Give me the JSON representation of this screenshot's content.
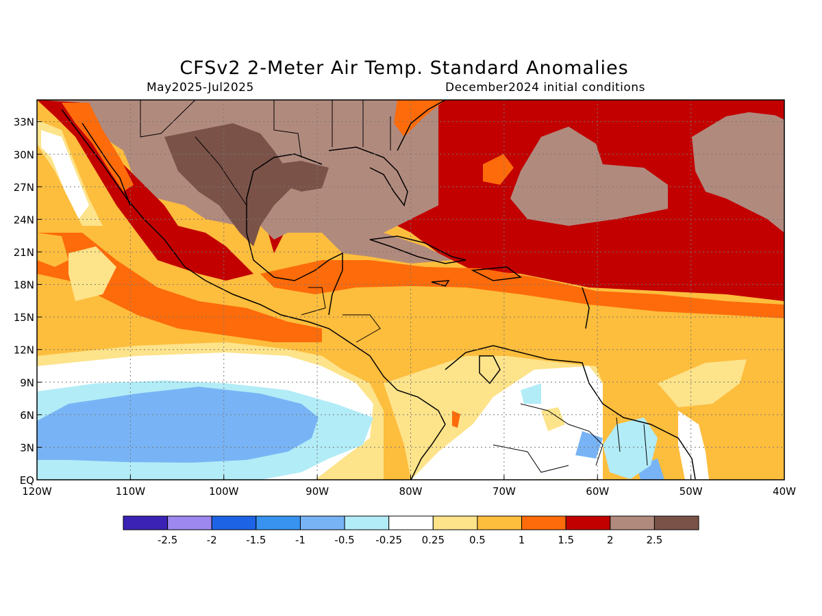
{
  "title": "CFSv2 2-Meter Air Temp. Standard Anomalies",
  "period": "May2025-Jul2025",
  "initial_conditions": "December2024 initial conditions",
  "map": {
    "lon_ticks": [
      "120W",
      "110W",
      "100W",
      "90W",
      "80W",
      "70W",
      "60W",
      "50W",
      "40W"
    ],
    "lat_ticks": [
      "33N",
      "30N",
      "27N",
      "24N",
      "21N",
      "18N",
      "15N",
      "12N",
      "9N",
      "6N",
      "3N",
      "EQ"
    ],
    "lon_range": [
      -120,
      -40
    ],
    "lat_range": [
      0,
      35
    ],
    "grid": "dotted"
  },
  "legend": {
    "colors": [
      "#3b22b5",
      "#9c88ee",
      "#1c63e6",
      "#3893f0",
      "#78b4f5",
      "#b2ecf7",
      "#ffffff",
      "#fde38a",
      "#fdbd3d",
      "#fd6b0a",
      "#c20000",
      "#b18a7e",
      "#7a5248"
    ],
    "labels": [
      "-2.5",
      "-2",
      "-1.5",
      "-1",
      "-0.5",
      "-0.25",
      "0.25",
      "0.5",
      "1",
      "1.5",
      "2",
      "2.5"
    ]
  }
}
